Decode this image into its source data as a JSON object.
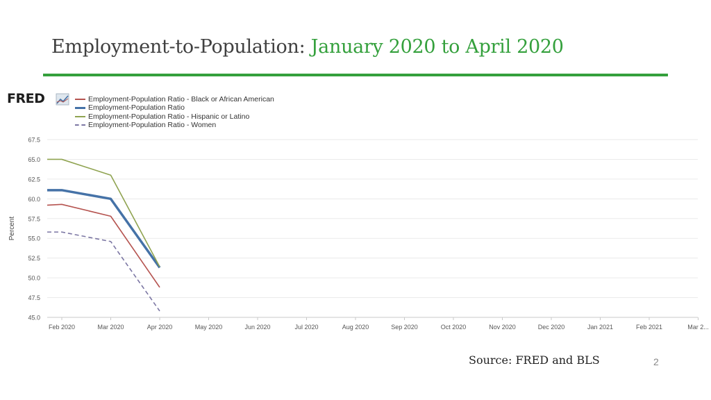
{
  "slide": {
    "title_main": "Employment-to-Population: ",
    "title_accent": "January 2020 to April 2020",
    "source": "Source: FRED and BLS",
    "page_number": "2",
    "accent_color": "#34a03c"
  },
  "logo": {
    "text": "FRED"
  },
  "chart_data": {
    "type": "line",
    "ylabel": "Percent",
    "xlabel": "",
    "ylim": [
      45.0,
      67.5
    ],
    "yticks": [
      "45.0",
      "47.5",
      "50.0",
      "52.5",
      "55.0",
      "57.5",
      "60.0",
      "62.5",
      "65.0",
      "67.5"
    ],
    "xticks": [
      "Feb 2020",
      "Mar 2020",
      "Apr 2020",
      "May 2020",
      "Jun 2020",
      "Jul 2020",
      "Aug 2020",
      "Sep 2020",
      "Oct 2020",
      "Nov 2020",
      "Dec 2020",
      "Jan 2021",
      "Feb 2021",
      "Mar 2..."
    ],
    "x": [
      "2020-01",
      "2020-02",
      "2020-03",
      "2020-04"
    ],
    "grid": true,
    "legend_position": "top-left",
    "series": [
      {
        "name": "Employment-Population Ratio - Black or African American",
        "color": "#b5534f",
        "style": "solid",
        "values": [
          59.2,
          59.3,
          57.8,
          48.8
        ]
      },
      {
        "name": "Employment-Population Ratio",
        "color": "#4572a7",
        "style": "thick",
        "values": [
          61.1,
          61.1,
          60.0,
          51.3
        ]
      },
      {
        "name": "Employment-Population Ratio - Hispanic or Latino",
        "color": "#8fa350",
        "style": "solid",
        "values": [
          65.0,
          65.0,
          63.0,
          51.4
        ]
      },
      {
        "name": "Employment-Population Ratio - Women",
        "color": "#7b76a3",
        "style": "dashed",
        "values": [
          55.8,
          55.8,
          54.6,
          45.8
        ]
      }
    ]
  }
}
